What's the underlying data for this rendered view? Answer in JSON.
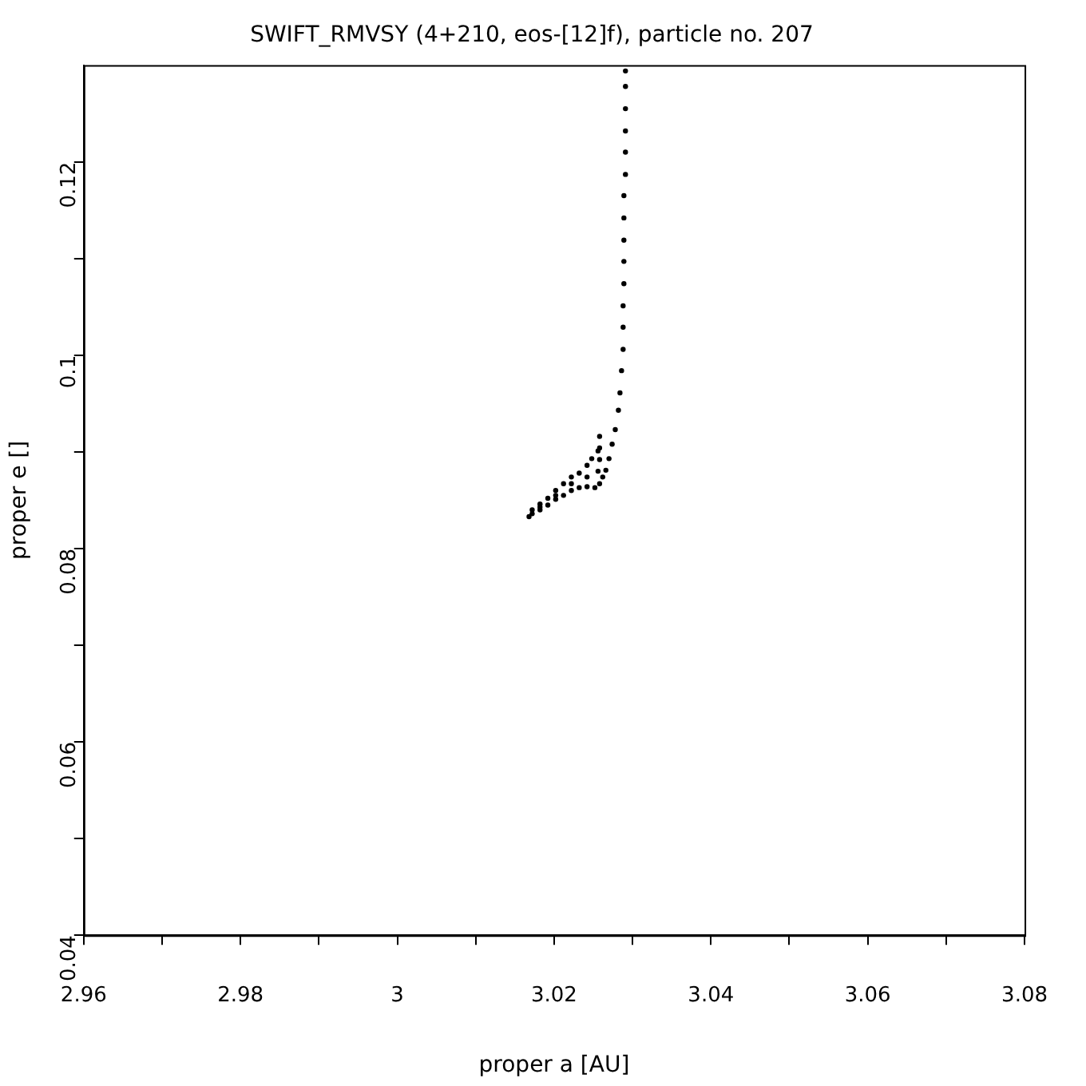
{
  "chart_data": {
    "type": "scatter",
    "title": "SWIFT_RMVSY (4+210, eos-[12]f), particle no. 207",
    "xlabel": "proper a [AU]",
    "ylabel": "proper e []",
    "xlim": [
      2.96,
      3.08
    ],
    "ylim": [
      0.04,
      0.13
    ],
    "xticks": [
      2.96,
      {
        "value": 2.97,
        "label": null
      },
      2.98,
      {
        "value": 2.99,
        "label": null
      },
      3,
      {
        "value": 3.01,
        "label": null
      },
      3.02,
      {
        "value": 3.03,
        "label": null
      },
      3.04,
      {
        "value": 3.05,
        "label": null
      },
      3.06,
      {
        "value": 3.07,
        "label": null
      },
      3.08
    ],
    "yticks": [
      0.04,
      {
        "value": 0.05,
        "label": null
      },
      0.06,
      {
        "value": 0.07,
        "label": null
      },
      0.08,
      {
        "value": 0.09,
        "label": null
      },
      0.1,
      {
        "value": 0.11,
        "label": null
      },
      0.12
    ],
    "grid": false,
    "legend": false,
    "marker": "circle",
    "series": [
      {
        "color": "#000000",
        "x": [
          3.0291,
          3.0291,
          3.0291,
          3.0291,
          3.0291,
          3.0291,
          3.0289,
          3.0289,
          3.0289,
          3.0289,
          3.0289,
          3.0288,
          3.0288,
          3.0288,
          3.0286,
          3.0284,
          3.0282,
          3.0278,
          3.0274,
          3.027,
          3.0266,
          3.0262,
          3.0258,
          3.0258,
          3.0258,
          3.0258,
          3.0256,
          3.0256,
          3.0248,
          3.0242,
          3.0232,
          3.0222,
          3.0212,
          3.0202,
          3.0192,
          3.0182,
          3.0172,
          3.0252,
          3.0242,
          3.0232,
          3.0222,
          3.0212,
          3.0202,
          3.0192,
          3.0182,
          3.0172,
          3.0168,
          3.0242,
          3.0222,
          3.0202,
          3.0182
        ],
        "values": [
          0.1294,
          0.1278,
          0.1255,
          0.1232,
          0.121,
          0.1187,
          0.1165,
          0.1142,
          0.1119,
          0.1097,
          0.1074,
          0.1051,
          0.1029,
          0.1006,
          0.0984,
          0.0961,
          0.0943,
          0.0923,
          0.0908,
          0.0893,
          0.0881,
          0.0874,
          0.0867,
          0.0916,
          0.0904,
          0.0892,
          0.088,
          0.0901,
          0.0893,
          0.0886,
          0.0878,
          0.0874,
          0.0867,
          0.086,
          0.0852,
          0.0846,
          0.084,
          0.0863,
          0.0864,
          0.0863,
          0.086,
          0.0855,
          0.0851,
          0.0845,
          0.084,
          0.0836,
          0.0833,
          0.0874,
          0.0867,
          0.0855,
          0.0843
        ]
      }
    ]
  }
}
